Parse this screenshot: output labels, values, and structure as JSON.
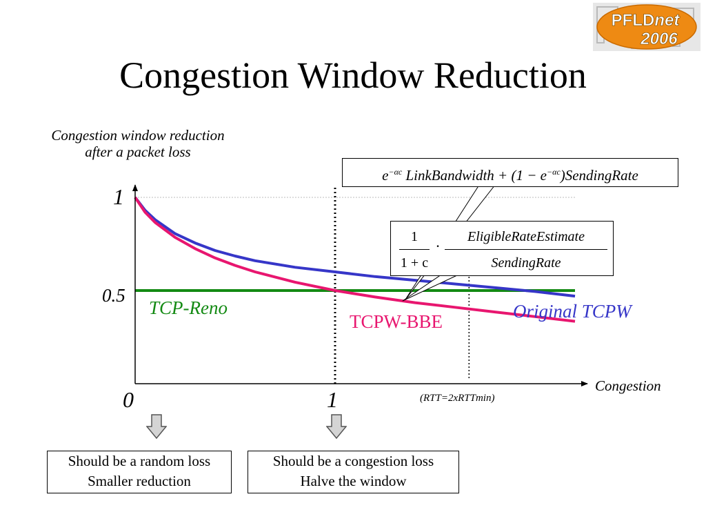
{
  "slide": {
    "title": "Congestion Window Reduction",
    "logo": {
      "name": "PFLD",
      "suffix": "net",
      "year": "2006"
    },
    "ylabel_line1": "Congestion window reduction",
    "ylabel_line2": "after a packet loss",
    "note": "(RTT=2xRTTmin)",
    "box_left": {
      "line1": "Should be a random loss",
      "line2": "Smaller reduction"
    },
    "box_right": {
      "line1": "Should be a congestion loss",
      "line2": "Halve the window"
    }
  },
  "formulas": {
    "top": {
      "e1": "e",
      "sup1": "−αc",
      "t1": " LinkBandwidth + (1 − ",
      "e2": "e",
      "sup2": "−αc",
      "t2": ")SendingRate"
    },
    "frac": {
      "num1": "1",
      "den1": "1 + c",
      "dot": "·",
      "num2": "EligibleRateEstimate",
      "den2": "SendingRate"
    }
  },
  "chart_data": {
    "type": "line",
    "title": "",
    "xlabel": "Congestion",
    "ylabel": "Congestion window reduction after a packet loss",
    "xlim": [
      0,
      2.2
    ],
    "ylim": [
      0,
      1
    ],
    "x_ticks": [
      "0",
      "1"
    ],
    "y_ticks": [
      "1",
      "0.5"
    ],
    "reference_lines": {
      "x_at_1": 1,
      "x_at_rtt": 1.67,
      "y_at_1": 1
    },
    "series": [
      {
        "name": "TCP-Reno",
        "color": "#138a13",
        "x": [
          0,
          2.2
        ],
        "y": [
          0.5,
          0.5
        ]
      },
      {
        "name": "Original TCPW",
        "color": "#3636c8",
        "x": [
          0,
          0.05,
          0.1,
          0.2,
          0.3,
          0.4,
          0.5,
          0.6,
          0.8,
          1.0,
          1.2,
          1.4,
          1.6,
          1.8,
          2.0,
          2.2
        ],
        "y": [
          1.0,
          0.93,
          0.88,
          0.805,
          0.755,
          0.715,
          0.685,
          0.66,
          0.625,
          0.6,
          0.575,
          0.555,
          0.535,
          0.515,
          0.495,
          0.47
        ]
      },
      {
        "name": "TCPW-BBE",
        "color": "#e8166f",
        "x": [
          0,
          0.05,
          0.1,
          0.2,
          0.3,
          0.4,
          0.5,
          0.6,
          0.8,
          1.0,
          1.2,
          1.4,
          1.6,
          1.8,
          2.0,
          2.2
        ],
        "y": [
          1.0,
          0.92,
          0.865,
          0.785,
          0.725,
          0.675,
          0.635,
          0.6,
          0.545,
          0.5,
          0.465,
          0.435,
          0.41,
          0.385,
          0.36,
          0.335
        ]
      }
    ]
  }
}
